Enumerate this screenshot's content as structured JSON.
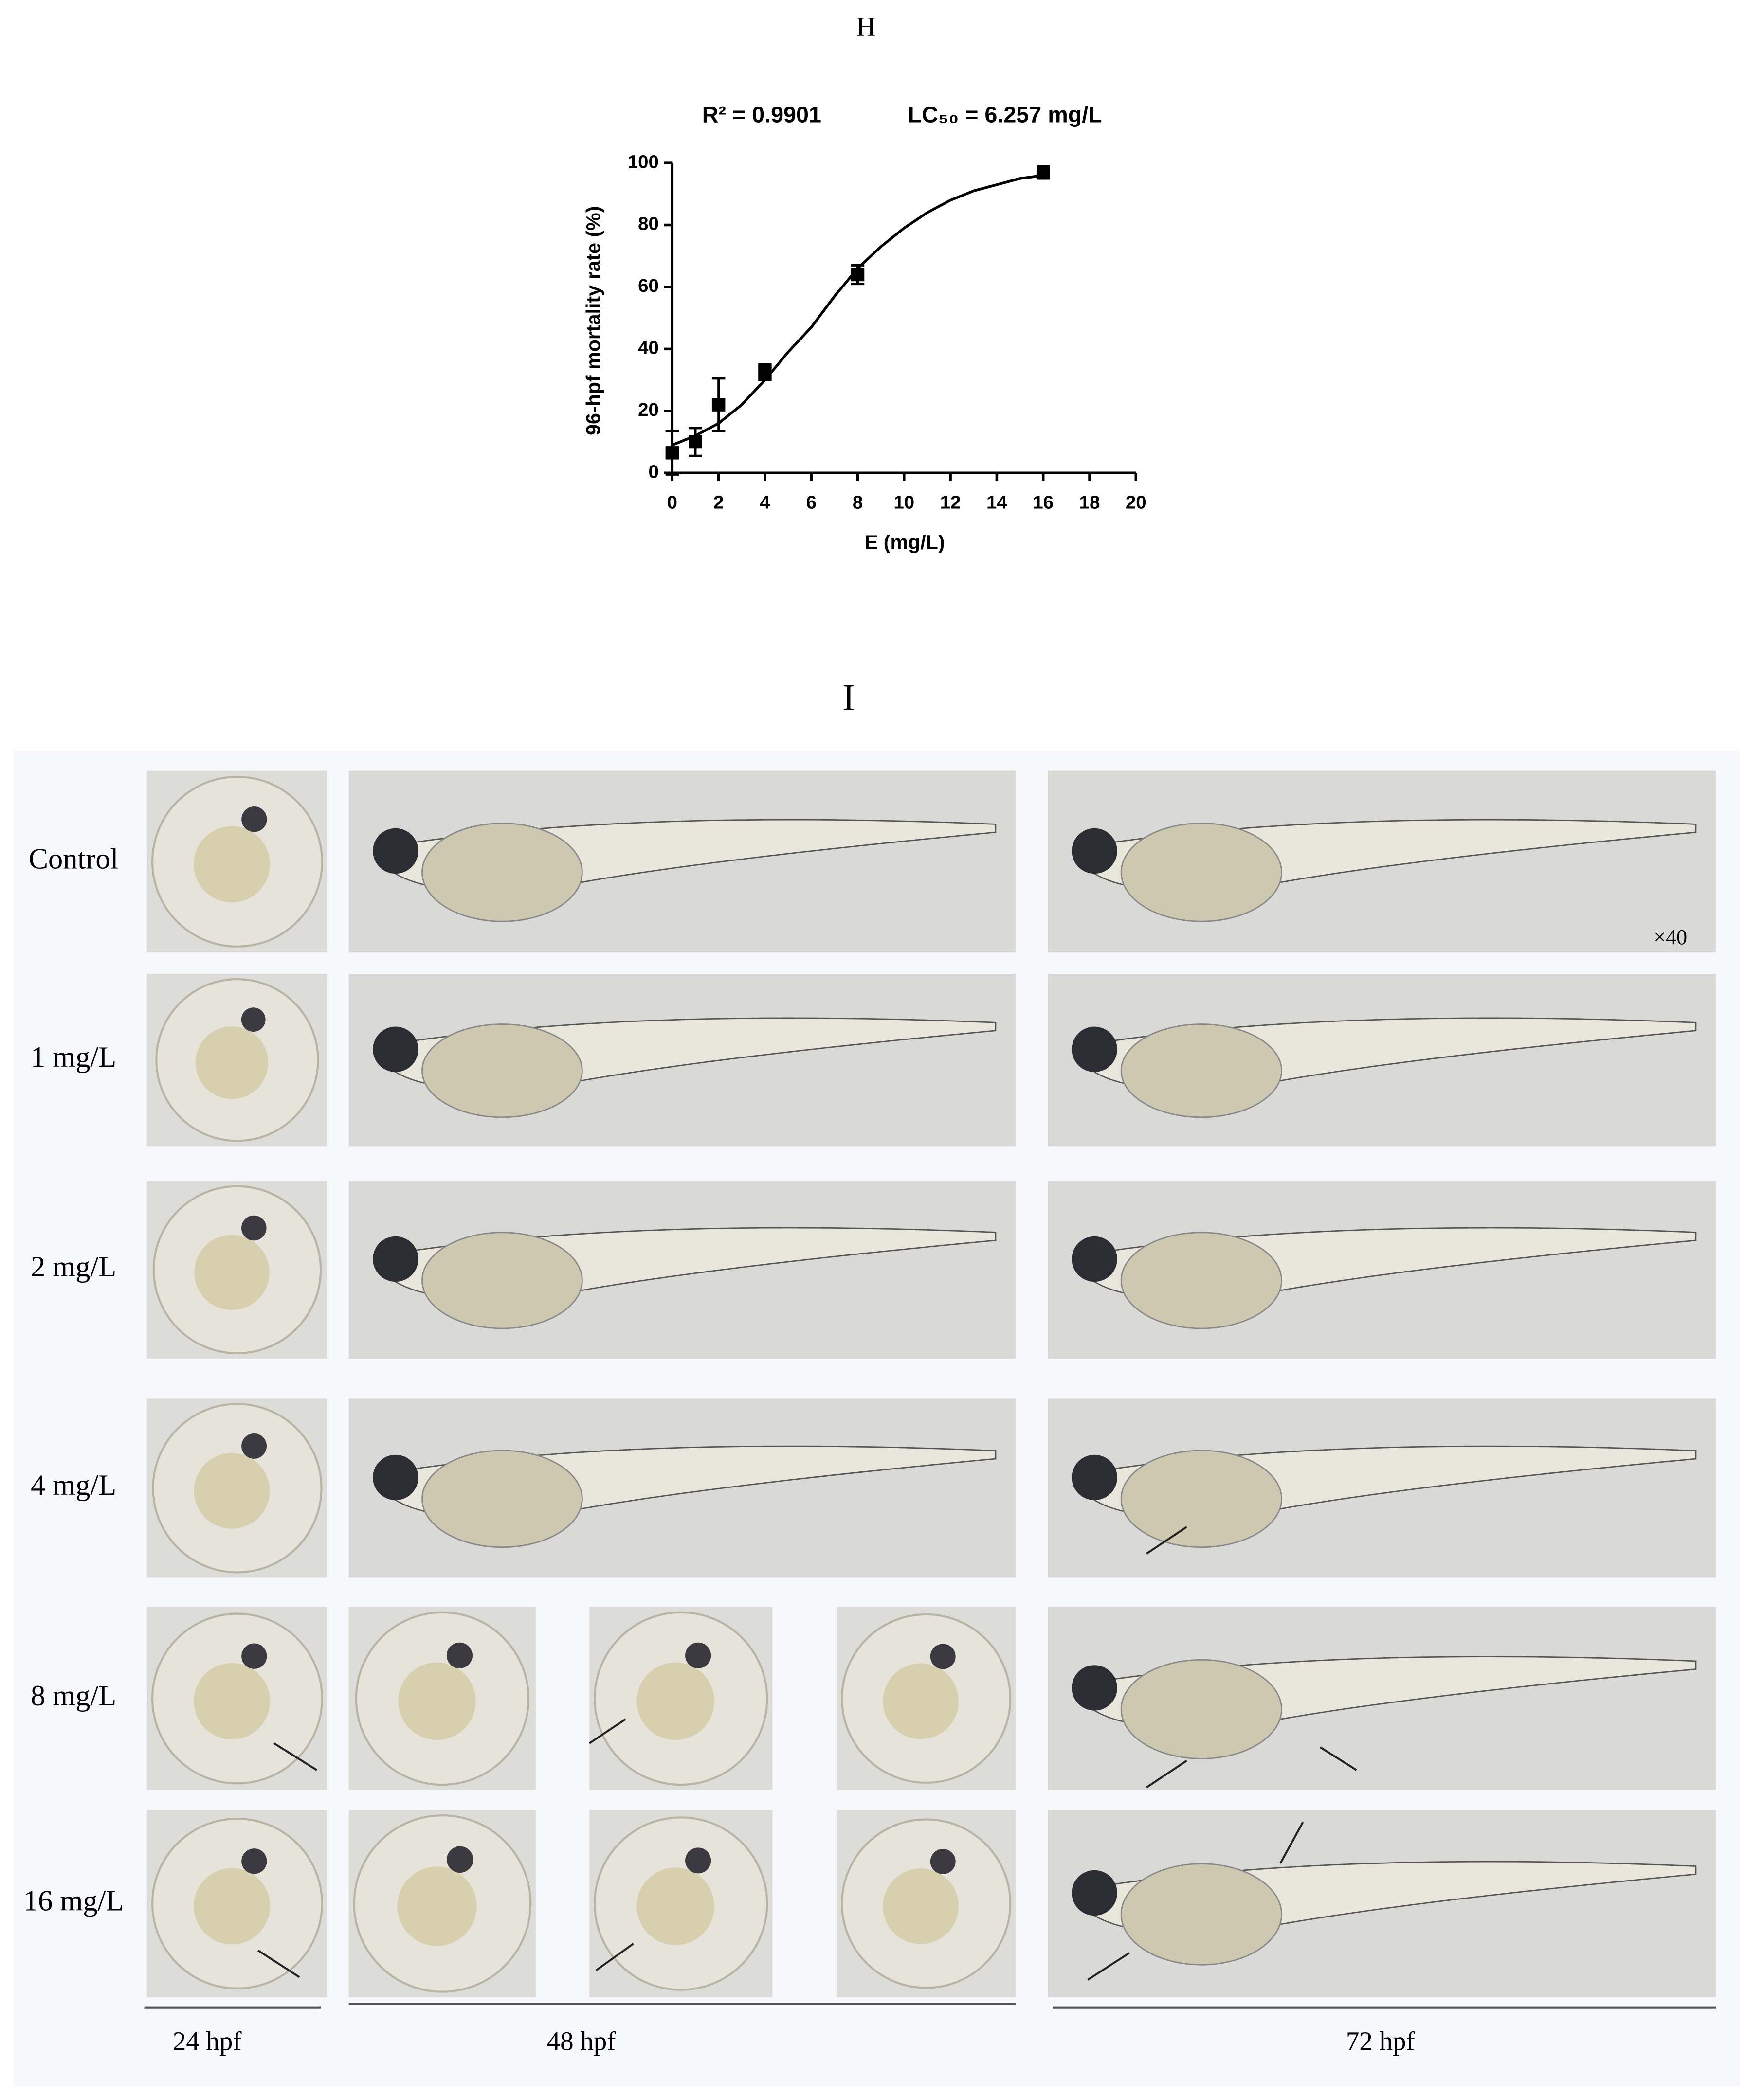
{
  "panel_h": {
    "label": "H"
  },
  "chart_data": {
    "type": "scatter",
    "annotations": [
      "R² = 0.9901",
      "LC₅₀ = 6.257 mg/L"
    ],
    "x_label": "E (mg/L)",
    "y_label": "96-hpf mortality rate (%)",
    "xlim": [
      0,
      20
    ],
    "xticks": [
      0,
      2,
      4,
      6,
      8,
      10,
      12,
      14,
      16,
      18,
      20
    ],
    "ylim": [
      0,
      100
    ],
    "yticks": [
      0,
      20,
      40,
      60,
      80,
      100
    ],
    "series": [
      {
        "marker": "square",
        "color": "#000000",
        "x": [
          0,
          1,
          2,
          4,
          8,
          16
        ],
        "values": [
          6.5,
          10,
          22,
          32.5,
          64,
          97
        ],
        "errors": [
          7,
          4.5,
          8.5,
          2.5,
          3,
          2
        ]
      },
      {
        "style": "line",
        "color": "#000000",
        "x": [
          0,
          1,
          2,
          3,
          4,
          5,
          6,
          7,
          8,
          9,
          10,
          11,
          12,
          13,
          14,
          15,
          16
        ],
        "values": [
          9,
          12,
          16,
          22,
          30,
          39,
          47,
          57,
          66,
          73,
          79,
          84,
          88,
          91,
          93,
          95,
          96
        ]
      }
    ]
  },
  "panel_i": {
    "label": "I",
    "rows": [
      "Control",
      "1 mg/L",
      "2 mg/L",
      "4 mg/L",
      "8 mg/L",
      "16 mg/L"
    ],
    "columns": [
      "24 hpf",
      "48 hpf",
      "72 hpf"
    ],
    "magnification": "×40"
  }
}
